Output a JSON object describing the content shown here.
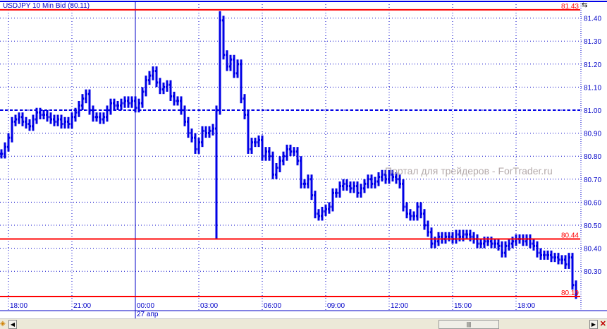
{
  "title": "USDJPY 10 Min Bid (80.11)",
  "watermark": "Портал для трейдеров - ForTrader.ru",
  "date_label": "27 апр",
  "colors": {
    "bars": "#0000e6",
    "levels": "#ff0000",
    "grid": "#0000c8",
    "axis_text": "#0000c8"
  },
  "chart_data": {
    "type": "bar",
    "title": "USDJPY 10 Min Bid (80.11)",
    "bar_interval": "10 min",
    "ylim": [
      80.19,
      81.43
    ],
    "y_ticks": [
      "81.40",
      "81.30",
      "81.20",
      "81.10",
      "81.00",
      "80.90",
      "80.80",
      "80.70",
      "80.60",
      "80.50",
      "80.40",
      "80.30"
    ],
    "x_ticks": [
      "18:00",
      "21:00",
      "00:00",
      "03:00",
      "06:00",
      "09:00",
      "12:00",
      "15:00",
      "18:00"
    ],
    "grid": true,
    "levels": [
      {
        "label": "81.43",
        "value": 81.43
      },
      {
        "label": "80.44",
        "value": 80.44
      },
      {
        "label": "80.19",
        "value": 80.19
      }
    ],
    "dashed_level": 81.0,
    "spike": {
      "index": 61,
      "low": 80.44,
      "high_index": 62,
      "high": 81.43
    },
    "closes": [
      80.81,
      80.84,
      80.88,
      80.95,
      80.96,
      80.97,
      80.95,
      80.94,
      80.93,
      80.96,
      80.99,
      80.98,
      80.98,
      80.97,
      80.96,
      80.95,
      80.96,
      80.94,
      80.95,
      80.94,
      80.97,
      80.99,
      81.02,
      81.05,
      81.07,
      81.0,
      80.97,
      80.97,
      80.96,
      80.97,
      81.0,
      81.03,
      81.02,
      81.02,
      81.03,
      81.04,
      81.03,
      81.04,
      81.01,
      81.03,
      81.08,
      81.13,
      81.15,
      81.17,
      81.12,
      81.09,
      81.1,
      81.11,
      81.06,
      81.04,
      81.04,
      81.0,
      80.95,
      80.9,
      80.88,
      80.83,
      80.86,
      80.91,
      80.9,
      80.91,
      80.92,
      81.0,
      81.39,
      81.24,
      81.19,
      81.22,
      81.16,
      81.2,
      81.05,
      80.98,
      80.83,
      80.86,
      80.86,
      80.87,
      80.8,
      80.82,
      80.8,
      80.72,
      80.75,
      80.78,
      80.8,
      80.83,
      80.82,
      80.82,
      80.78,
      80.68,
      80.68,
      80.7,
      80.63,
      80.55,
      80.54,
      80.56,
      80.57,
      80.58,
      80.64,
      80.64,
      80.67,
      80.68,
      80.67,
      80.66,
      80.67,
      80.64,
      80.66,
      80.68,
      80.7,
      80.68,
      80.69,
      80.71,
      80.72,
      80.7,
      80.72,
      80.71,
      80.7,
      80.68,
      80.58,
      80.55,
      80.54,
      80.54,
      80.58,
      80.55,
      80.5,
      80.47,
      80.42,
      80.43,
      80.45,
      80.44,
      80.45,
      80.45,
      80.44,
      80.46,
      80.45,
      80.46,
      80.46,
      80.45,
      80.44,
      80.42,
      80.42,
      80.43,
      80.43,
      80.42,
      80.42,
      80.41,
      80.38,
      80.41,
      80.42,
      80.43,
      80.44,
      80.44,
      80.43,
      80.44,
      80.42,
      80.41,
      80.38,
      80.37,
      80.37,
      80.37,
      80.36,
      80.36,
      80.35,
      80.35,
      80.33,
      80.36,
      80.24,
      80.2
    ]
  }
}
